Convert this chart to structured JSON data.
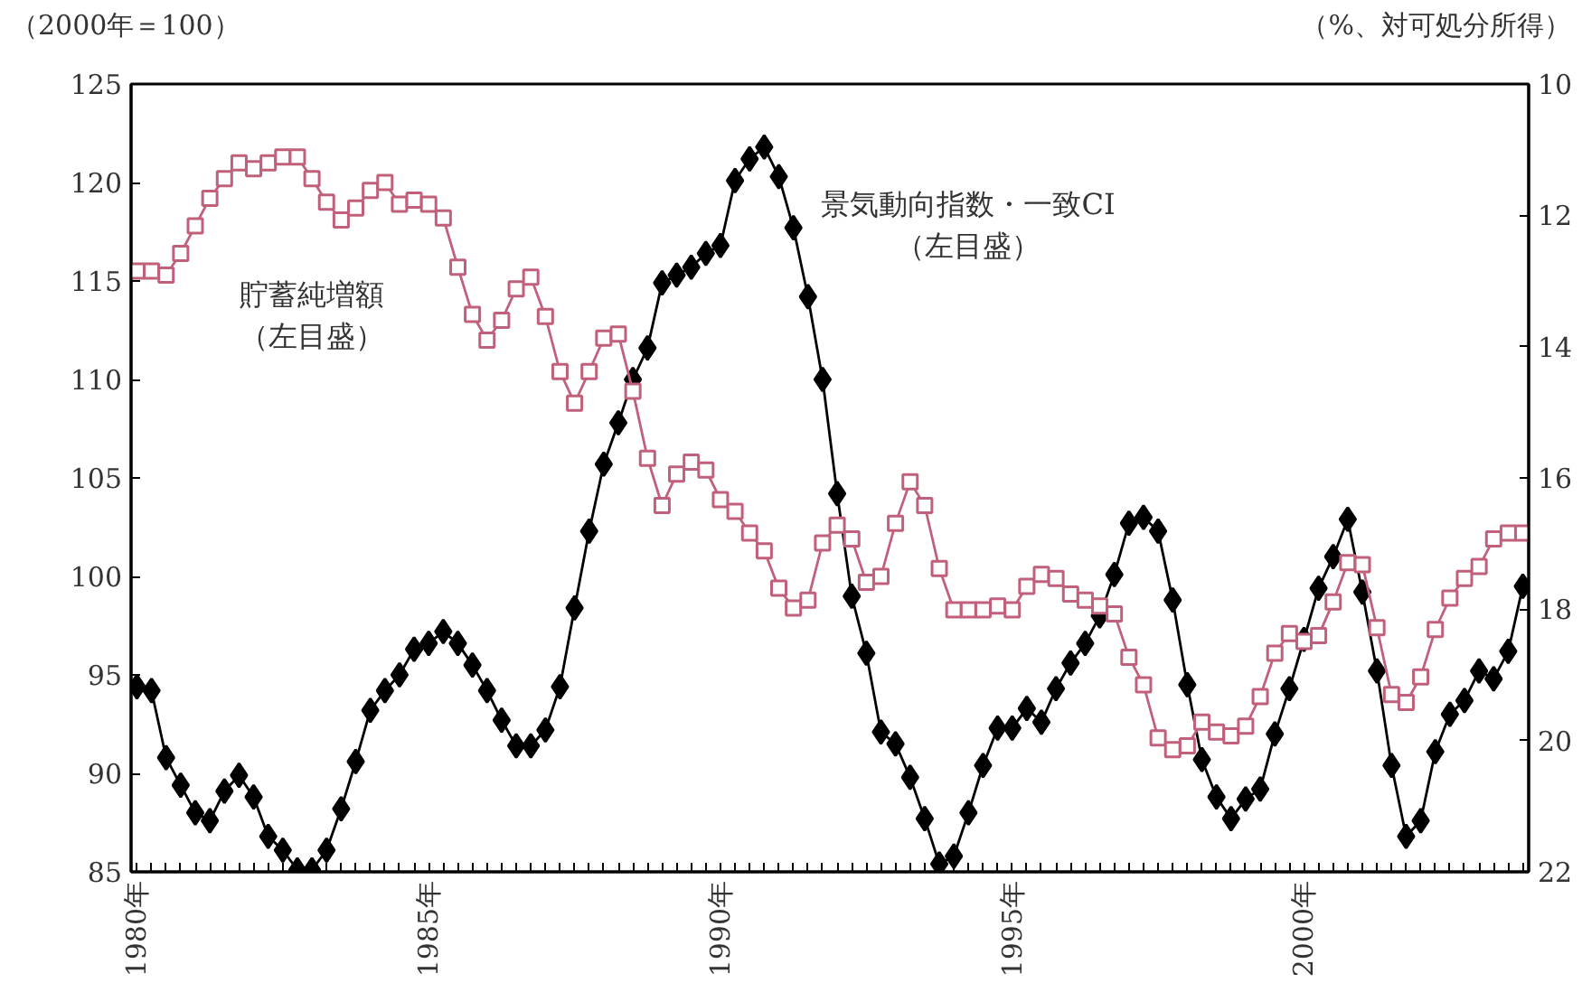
{
  "chart_data": {
    "type": "line",
    "ylabel": "（2000年＝100）",
    "y2label": "（%、対可処分所得）",
    "xlim": [
      1979.9,
      2003.85
    ],
    "ylim": [
      85,
      125
    ],
    "y2lim": [
      22,
      10
    ],
    "yticks": [
      85,
      90,
      95,
      100,
      105,
      110,
      115,
      120,
      125
    ],
    "y2ticks": [
      10,
      12,
      14,
      16,
      18,
      20,
      22
    ],
    "xticks": [
      {
        "value": 1980,
        "label": "1980年"
      },
      {
        "value": 1980.25,
        "label": null
      },
      {
        "value": 1980.5,
        "label": null
      },
      {
        "value": 1980.75,
        "label": null
      },
      {
        "value": 1981,
        "label": null
      },
      {
        "value": 1981.25,
        "label": null
      },
      {
        "value": 1981.5,
        "label": null
      },
      {
        "value": 1981.75,
        "label": null
      },
      {
        "value": 1982,
        "label": null
      },
      {
        "value": 1982.25,
        "label": null
      },
      {
        "value": 1982.5,
        "label": null
      },
      {
        "value": 1982.75,
        "label": null
      },
      {
        "value": 1983,
        "label": null
      },
      {
        "value": 1983.25,
        "label": null
      },
      {
        "value": 1983.5,
        "label": null
      },
      {
        "value": 1983.75,
        "label": null
      },
      {
        "value": 1984,
        "label": null
      },
      {
        "value": 1984.25,
        "label": null
      },
      {
        "value": 1984.5,
        "label": null
      },
      {
        "value": 1984.75,
        "label": null
      },
      {
        "value": 1985,
        "label": "1985年"
      },
      {
        "value": 1985.25,
        "label": null
      },
      {
        "value": 1985.5,
        "label": null
      },
      {
        "value": 1985.75,
        "label": null
      },
      {
        "value": 1986,
        "label": null
      },
      {
        "value": 1986.25,
        "label": null
      },
      {
        "value": 1986.5,
        "label": null
      },
      {
        "value": 1986.75,
        "label": null
      },
      {
        "value": 1987,
        "label": null
      },
      {
        "value": 1987.25,
        "label": null
      },
      {
        "value": 1987.5,
        "label": null
      },
      {
        "value": 1987.75,
        "label": null
      },
      {
        "value": 1988,
        "label": null
      },
      {
        "value": 1988.25,
        "label": null
      },
      {
        "value": 1988.5,
        "label": null
      },
      {
        "value": 1988.75,
        "label": null
      },
      {
        "value": 1989,
        "label": null
      },
      {
        "value": 1989.25,
        "label": null
      },
      {
        "value": 1989.5,
        "label": null
      },
      {
        "value": 1989.75,
        "label": null
      },
      {
        "value": 1990,
        "label": "1990年"
      },
      {
        "value": 1990.25,
        "label": null
      },
      {
        "value": 1990.5,
        "label": null
      },
      {
        "value": 1990.75,
        "label": null
      },
      {
        "value": 1991,
        "label": null
      },
      {
        "value": 1991.25,
        "label": null
      },
      {
        "value": 1991.5,
        "label": null
      },
      {
        "value": 1991.75,
        "label": null
      },
      {
        "value": 1992,
        "label": null
      },
      {
        "value": 1992.25,
        "label": null
      },
      {
        "value": 1992.5,
        "label": null
      },
      {
        "value": 1992.75,
        "label": null
      },
      {
        "value": 1993,
        "label": null
      },
      {
        "value": 1993.25,
        "label": null
      },
      {
        "value": 1993.5,
        "label": null
      },
      {
        "value": 1993.75,
        "label": null
      },
      {
        "value": 1994,
        "label": null
      },
      {
        "value": 1994.25,
        "label": null
      },
      {
        "value": 1994.5,
        "label": null
      },
      {
        "value": 1994.75,
        "label": null
      },
      {
        "value": 1995,
        "label": "1995年"
      },
      {
        "value": 1995.25,
        "label": null
      },
      {
        "value": 1995.5,
        "label": null
      },
      {
        "value": 1995.75,
        "label": null
      },
      {
        "value": 1996,
        "label": null
      },
      {
        "value": 1996.25,
        "label": null
      },
      {
        "value": 1996.5,
        "label": null
      },
      {
        "value": 1996.75,
        "label": null
      },
      {
        "value": 1997,
        "label": null
      },
      {
        "value": 1997.25,
        "label": null
      },
      {
        "value": 1997.5,
        "label": null
      },
      {
        "value": 1997.75,
        "label": null
      },
      {
        "value": 1998,
        "label": null
      },
      {
        "value": 1998.25,
        "label": null
      },
      {
        "value": 1998.5,
        "label": null
      },
      {
        "value": 1998.75,
        "label": null
      },
      {
        "value": 1999,
        "label": null
      },
      {
        "value": 1999.25,
        "label": null
      },
      {
        "value": 1999.5,
        "label": null
      },
      {
        "value": 1999.75,
        "label": null
      },
      {
        "value": 2000,
        "label": "2000年"
      },
      {
        "value": 2000.25,
        "label": null
      },
      {
        "value": 2000.5,
        "label": null
      },
      {
        "value": 2000.75,
        "label": null
      },
      {
        "value": 2001,
        "label": null
      },
      {
        "value": 2001.25,
        "label": null
      },
      {
        "value": 2001.5,
        "label": null
      },
      {
        "value": 2001.75,
        "label": null
      },
      {
        "value": 2002,
        "label": null
      },
      {
        "value": 2002.25,
        "label": null
      },
      {
        "value": 2002.5,
        "label": null
      },
      {
        "value": 2002.75,
        "label": null
      },
      {
        "value": 2003,
        "label": null
      },
      {
        "value": 2003.25,
        "label": null
      },
      {
        "value": 2003.5,
        "label": null
      },
      {
        "value": 2003.75,
        "label": null
      }
    ],
    "x": [
      1980,
      1980.25,
      1980.5,
      1980.75,
      1981,
      1981.25,
      1981.5,
      1981.75,
      1982,
      1982.25,
      1982.5,
      1982.75,
      1983,
      1983.25,
      1983.5,
      1983.75,
      1984,
      1984.25,
      1984.5,
      1984.75,
      1985,
      1985.25,
      1985.5,
      1985.75,
      1986,
      1986.25,
      1986.5,
      1986.75,
      1987,
      1987.25,
      1987.5,
      1987.75,
      1988,
      1988.25,
      1988.5,
      1988.75,
      1989,
      1989.25,
      1989.5,
      1989.75,
      1990,
      1990.25,
      1990.5,
      1990.75,
      1991,
      1991.25,
      1991.5,
      1991.75,
      1992,
      1992.25,
      1992.5,
      1992.75,
      1993,
      1993.25,
      1993.5,
      1993.75,
      1994,
      1994.25,
      1994.5,
      1994.75,
      1995,
      1995.25,
      1995.5,
      1995.75,
      1996,
      1996.25,
      1996.5,
      1996.75,
      1997,
      1997.25,
      1997.5,
      1997.75,
      1998,
      1998.25,
      1998.5,
      1998.75,
      1999,
      1999.25,
      1999.5,
      1999.75,
      2000,
      2000.25,
      2000.5,
      2000.75,
      2001,
      2001.25,
      2001.5,
      2001.75,
      2002,
      2002.25,
      2002.5,
      2002.75,
      2003,
      2003.25,
      2003.5,
      2003.75
    ],
    "series": [
      {
        "name": "景気動向指数・一致CI（左目盛）",
        "color": "#000000",
        "marker": "diamond",
        "values": [
          94.4,
          94.2,
          90.8,
          89.4,
          88.0,
          87.6,
          89.1,
          89.9,
          88.8,
          86.8,
          86.1,
          85.1,
          85.1,
          86.1,
          88.2,
          90.6,
          93.2,
          94.2,
          95.0,
          96.3,
          96.6,
          97.2,
          96.6,
          95.5,
          94.2,
          92.7,
          91.4,
          91.4,
          92.2,
          94.4,
          98.4,
          102.3,
          105.7,
          107.8,
          110.0,
          111.6,
          114.9,
          115.3,
          115.7,
          116.4,
          116.8,
          120.1,
          121.2,
          121.8,
          120.3,
          117.7,
          114.2,
          110.0,
          104.2,
          99.0,
          96.1,
          92.1,
          91.5,
          89.8,
          87.7,
          85.4,
          85.8,
          88.0,
          90.4,
          92.3,
          92.3,
          93.3,
          92.6,
          94.3,
          95.6,
          96.6,
          98.0,
          100.1,
          102.7,
          103.0,
          102.3,
          98.8,
          94.5,
          90.7,
          88.8,
          87.7,
          88.7,
          89.2,
          92.0,
          94.3,
          96.8,
          99.4,
          101.0,
          102.9,
          99.2,
          95.2,
          90.4,
          86.8,
          87.6,
          91.1,
          93.0,
          93.7,
          95.2,
          94.8,
          96.2,
          99.5
        ]
      },
      {
        "name": "貯蓄純増額（左目盛）",
        "color": "#c0607a",
        "marker": "square",
        "values": [
          115.5,
          115.5,
          115.3,
          116.4,
          117.8,
          119.2,
          120.2,
          121.0,
          120.7,
          121.0,
          121.3,
          121.3,
          120.2,
          119.0,
          118.1,
          118.7,
          119.6,
          120.0,
          118.9,
          119.1,
          118.9,
          118.2,
          115.7,
          113.3,
          112.0,
          113.0,
          114.6,
          115.2,
          113.2,
          110.4,
          108.8,
          110.4,
          112.1,
          112.3,
          109.4,
          106.0,
          103.6,
          105.2,
          105.8,
          105.4,
          103.9,
          103.3,
          102.2,
          101.3,
          99.4,
          98.4,
          98.8,
          101.7,
          102.6,
          101.9,
          99.7,
          100.0,
          102.7,
          104.8,
          103.6,
          100.4,
          98.3,
          98.3,
          98.3,
          98.5,
          98.3,
          99.5,
          100.1,
          99.9,
          99.1,
          98.8,
          98.5,
          98.1,
          95.9,
          94.5,
          91.8,
          91.2,
          91.4,
          92.6,
          92.1,
          91.9,
          92.4,
          93.9,
          96.1,
          97.1,
          96.7,
          97.0,
          98.7,
          100.7,
          100.6,
          97.4,
          94.0,
          93.6,
          94.9,
          97.3,
          98.9,
          99.9,
          100.5,
          101.9,
          102.2,
          102.2
        ]
      }
    ]
  }
}
